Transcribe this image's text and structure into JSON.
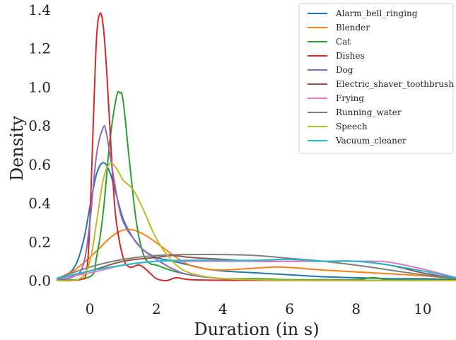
{
  "chart_data": {
    "type": "line",
    "title": "",
    "xlabel": "Duration (in s)",
    "ylabel": "Density",
    "xlim": [
      -1,
      11
    ],
    "ylim": [
      0,
      1.4
    ],
    "xticks": [
      0,
      2,
      4,
      6,
      8,
      10
    ],
    "yticks": [
      0.0,
      0.2,
      0.4,
      0.6,
      0.8,
      1.0,
      1.2,
      1.4
    ],
    "xtick_labels": [
      "0",
      "2",
      "4",
      "6",
      "8",
      "10"
    ],
    "ytick_labels": [
      "0.0",
      "0.2",
      "0.4",
      "0.6",
      "0.8",
      "1.0",
      "1.2",
      "1.4"
    ],
    "grid": false,
    "legend_position": "top-right",
    "series": [
      {
        "name": "Alarm_bell_ringing",
        "color": "#1f77b4",
        "x": [
          -1,
          -0.5,
          -0.2,
          0,
          0.2,
          0.4,
          0.6,
          0.8,
          1.0,
          1.3,
          1.6,
          2.0,
          2.5,
          3.0,
          3.5,
          4.0,
          5.0,
          6.0,
          7.0,
          8.0,
          9.0,
          10.0,
          11.0
        ],
        "y": [
          0.01,
          0.06,
          0.2,
          0.38,
          0.55,
          0.61,
          0.56,
          0.44,
          0.32,
          0.22,
          0.16,
          0.12,
          0.1,
          0.08,
          0.06,
          0.05,
          0.04,
          0.03,
          0.02,
          0.015,
          0.01,
          0.01,
          0.005
        ]
      },
      {
        "name": "Blender",
        "color": "#ff7f0e",
        "x": [
          -1,
          -0.5,
          0,
          0.3,
          0.6,
          0.9,
          1.2,
          1.5,
          1.8,
          2.2,
          2.6,
          3.0,
          3.5,
          4.0,
          5.0,
          5.5,
          6.0,
          7.0,
          8.0,
          9.0,
          10.0,
          11.0
        ],
        "y": [
          0.01,
          0.05,
          0.12,
          0.17,
          0.22,
          0.255,
          0.265,
          0.25,
          0.22,
          0.17,
          0.12,
          0.08,
          0.06,
          0.055,
          0.065,
          0.07,
          0.068,
          0.055,
          0.045,
          0.035,
          0.025,
          0.01
        ]
      },
      {
        "name": "Cat",
        "color": "#2ca02c",
        "x": [
          -1,
          0,
          0.2,
          0.4,
          0.6,
          0.8,
          0.9,
          1.0,
          1.2,
          1.4,
          1.6,
          1.8,
          2.0,
          2.5,
          3.0,
          3.5,
          4.0,
          5.0,
          6.0,
          7.0,
          8.0,
          8.5,
          9.0,
          10.0,
          11.0
        ],
        "y": [
          0,
          0.02,
          0.12,
          0.35,
          0.72,
          0.95,
          0.97,
          0.93,
          0.6,
          0.3,
          0.14,
          0.09,
          0.08,
          0.05,
          0.03,
          0.02,
          0.01,
          0.01,
          0.005,
          0.005,
          0.005,
          0.015,
          0.005,
          0.003,
          0.002
        ]
      },
      {
        "name": "Dishes",
        "color": "#d62728",
        "x": [
          -1,
          -0.3,
          -0.1,
          0,
          0.1,
          0.2,
          0.3,
          0.4,
          0.5,
          0.6,
          0.7,
          0.8,
          1.0,
          1.2,
          1.5,
          1.8,
          2.0,
          2.3,
          2.6,
          3.0,
          4.0,
          6.0,
          8.0,
          11.0
        ],
        "y": [
          0,
          0.005,
          0.05,
          0.3,
          0.8,
          1.25,
          1.38,
          1.32,
          1.1,
          0.8,
          0.5,
          0.3,
          0.12,
          0.07,
          0.08,
          0.04,
          0.01,
          0.0,
          0.015,
          0.005,
          0.002,
          0.001,
          0.001,
          0.0
        ]
      },
      {
        "name": "Dog",
        "color": "#9467bd",
        "x": [
          -1,
          -0.5,
          -0.2,
          0,
          0.2,
          0.4,
          0.5,
          0.7,
          0.9,
          1.1,
          1.3,
          1.6,
          2.0,
          2.5,
          3.0,
          4.0,
          5.0,
          6.0,
          8.0,
          11.0
        ],
        "y": [
          0.005,
          0.02,
          0.08,
          0.3,
          0.65,
          0.79,
          0.76,
          0.55,
          0.36,
          0.27,
          0.22,
          0.16,
          0.11,
          0.06,
          0.03,
          0.01,
          0.005,
          0.002,
          0.001,
          0.0
        ]
      },
      {
        "name": "Electric_shaver_toothbrush",
        "color": "#8c564b",
        "x": [
          -1,
          0,
          1,
          2,
          2.5,
          3,
          4,
          5,
          6,
          7,
          8,
          9,
          10,
          11
        ],
        "y": [
          0.01,
          0.05,
          0.1,
          0.12,
          0.13,
          0.12,
          0.11,
          0.1,
          0.1,
          0.1,
          0.1,
          0.08,
          0.04,
          0.01
        ]
      },
      {
        "name": "Frying",
        "color": "#e377c2",
        "x": [
          -1,
          0,
          1,
          2,
          3,
          4,
          5,
          6,
          7,
          8,
          8.5,
          9,
          10,
          11
        ],
        "y": [
          0.01,
          0.04,
          0.08,
          0.1,
          0.1,
          0.1,
          0.1,
          0.1,
          0.1,
          0.1,
          0.1,
          0.095,
          0.06,
          0.015
        ]
      },
      {
        "name": "Running_water",
        "color": "#7f7f7f",
        "x": [
          -1,
          0,
          1,
          2,
          3,
          4,
          5,
          6,
          7,
          8,
          9,
          10,
          11
        ],
        "y": [
          0.01,
          0.07,
          0.11,
          0.13,
          0.135,
          0.135,
          0.13,
          0.115,
          0.1,
          0.08,
          0.055,
          0.03,
          0.01
        ]
      },
      {
        "name": "Speech",
        "color": "#bcbd22",
        "x": [
          -1,
          -0.3,
          0,
          0.2,
          0.4,
          0.6,
          0.8,
          1.0,
          1.3,
          1.6,
          1.9,
          2.2,
          2.6,
          3.0,
          3.5,
          4.0,
          5.0,
          6.0,
          8.0,
          11.0
        ],
        "y": [
          0,
          0.01,
          0.1,
          0.3,
          0.52,
          0.605,
          0.58,
          0.52,
          0.47,
          0.37,
          0.25,
          0.16,
          0.08,
          0.04,
          0.02,
          0.01,
          0.005,
          0.002,
          0.001,
          0.0
        ]
      },
      {
        "name": "Vacuum_cleaner",
        "color": "#17becf",
        "x": [
          -1,
          0,
          1,
          2,
          3,
          4,
          5,
          6,
          7,
          8,
          9,
          10,
          11
        ],
        "y": [
          0.01,
          0.05,
          0.08,
          0.1,
          0.105,
          0.105,
          0.105,
          0.11,
          0.1,
          0.1,
          0.08,
          0.05,
          0.015
        ]
      }
    ]
  }
}
